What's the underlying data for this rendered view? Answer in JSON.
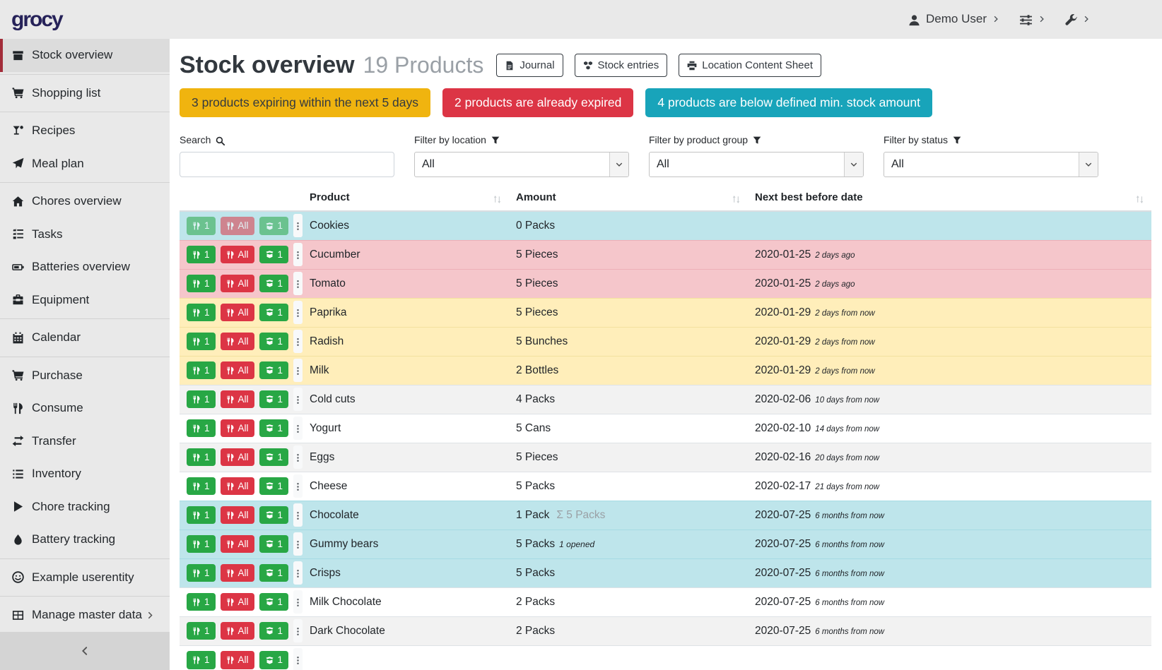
{
  "brand": "grocy",
  "topbar": {
    "user_label": "Demo User",
    "menus": [
      {
        "name": "user-menu",
        "icon": "user",
        "label": "Demo User"
      },
      {
        "name": "settings-menu",
        "icon": "sliders",
        "label": ""
      },
      {
        "name": "admin-menu",
        "icon": "wrench",
        "label": ""
      }
    ]
  },
  "sidebar": {
    "items": [
      {
        "label": "Stock overview",
        "icon": "box",
        "active": true,
        "divider_after": true
      },
      {
        "label": "Shopping list",
        "icon": "cart",
        "divider_after": true
      },
      {
        "label": "Recipes",
        "icon": "cocktail"
      },
      {
        "label": "Meal plan",
        "icon": "plane",
        "divider_after": true
      },
      {
        "label": "Chores overview",
        "icon": "home"
      },
      {
        "label": "Tasks",
        "icon": "tasks"
      },
      {
        "label": "Batteries overview",
        "icon": "battery"
      },
      {
        "label": "Equipment",
        "icon": "toolbox",
        "divider_after": true
      },
      {
        "label": "Calendar",
        "icon": "calendar",
        "divider_after": true
      },
      {
        "label": "Purchase",
        "icon": "cart"
      },
      {
        "label": "Consume",
        "icon": "utensils"
      },
      {
        "label": "Transfer",
        "icon": "exchange"
      },
      {
        "label": "Inventory",
        "icon": "list"
      },
      {
        "label": "Chore tracking",
        "icon": "play"
      },
      {
        "label": "Battery tracking",
        "icon": "tint",
        "divider_after": true
      },
      {
        "label": "Example userentity",
        "icon": "smile",
        "divider_after": true
      },
      {
        "label": "Manage master data",
        "icon": "table",
        "submenu": true
      }
    ]
  },
  "page": {
    "title": "Stock overview",
    "subtitle": "19 Products"
  },
  "toolbar": {
    "buttons": [
      {
        "label": "Journal",
        "icon": "journal"
      },
      {
        "label": "Stock entries",
        "icon": "cubes"
      },
      {
        "label": "Location Content Sheet",
        "icon": "print"
      }
    ]
  },
  "banners": [
    {
      "text": "3 products expiring within the next 5 days",
      "type": "warning"
    },
    {
      "text": "2 products are already expired",
      "type": "danger"
    },
    {
      "text": "4 products are below defined min. stock amount",
      "type": "info"
    }
  ],
  "filters": {
    "search": {
      "label": "Search",
      "icon": "search",
      "value": ""
    },
    "selects": [
      {
        "label": "Filter by location",
        "icon": "filter",
        "value": "All"
      },
      {
        "label": "Filter by product group",
        "icon": "filter",
        "value": "All"
      },
      {
        "label": "Filter by status",
        "icon": "filter",
        "value": "All"
      }
    ]
  },
  "table": {
    "columns": [
      "",
      "Product",
      "Amount",
      "Next best before date"
    ],
    "row_buttons": {
      "consume_one_label": "1",
      "consume_all_label": "All",
      "open_one_label": "1",
      "consume_icon": "utensils",
      "open_icon": "box-open",
      "menu_icon": "ellipsis-v"
    },
    "rows": [
      {
        "product": "Cookies",
        "amount": "0 Packs",
        "status": "info",
        "buttons_disabled": true,
        "date": "",
        "date_note": ""
      },
      {
        "product": "Cucumber",
        "amount": "5 Pieces",
        "status": "danger",
        "date": "2020-01-25",
        "date_note": "2 days ago"
      },
      {
        "product": "Tomato",
        "amount": "5 Pieces",
        "status": "danger",
        "date": "2020-01-25",
        "date_note": "2 days ago"
      },
      {
        "product": "Paprika",
        "amount": "5 Pieces",
        "status": "warning",
        "date": "2020-01-29",
        "date_note": "2 days from now"
      },
      {
        "product": "Radish",
        "amount": "5 Bunches",
        "status": "warning",
        "date": "2020-01-29",
        "date_note": "2 days from now"
      },
      {
        "product": "Milk",
        "amount": "2 Bottles",
        "status": "warning",
        "date": "2020-01-29",
        "date_note": "2 days from now"
      },
      {
        "product": "Cold cuts",
        "amount": "4 Packs",
        "status": "none",
        "date": "2020-02-06",
        "date_note": "10 days from now"
      },
      {
        "product": "Yogurt",
        "amount": "5 Cans",
        "status": "none",
        "date": "2020-02-10",
        "date_note": "14 days from now"
      },
      {
        "product": "Eggs",
        "amount": "5 Pieces",
        "status": "none",
        "date": "2020-02-16",
        "date_note": "20 days from now"
      },
      {
        "product": "Cheese",
        "amount": "5 Packs",
        "status": "none",
        "date": "2020-02-17",
        "date_note": "21 days from now"
      },
      {
        "product": "Chocolate",
        "amount": "1 Pack",
        "amount_sum": "Σ 5 Packs",
        "status": "info",
        "date": "2020-07-25",
        "date_note": "6 months from now"
      },
      {
        "product": "Gummy bears",
        "amount": "5 Packs",
        "amount_note": "1 opened",
        "status": "info",
        "date": "2020-07-25",
        "date_note": "6 months from now"
      },
      {
        "product": "Crisps",
        "amount": "5 Packs",
        "status": "info",
        "date": "2020-07-25",
        "date_note": "6 months from now"
      },
      {
        "product": "Milk Chocolate",
        "amount": "2 Packs",
        "status": "none",
        "date": "2020-07-25",
        "date_note": "6 months from now"
      },
      {
        "product": "Dark Chocolate",
        "amount": "2 Packs",
        "status": "none",
        "date": "2020-07-25",
        "date_note": "6 months from now"
      },
      {
        "product": "",
        "amount": "",
        "status": "none",
        "date": "",
        "date_note": "",
        "partial": true
      }
    ]
  },
  "colors": {
    "accent_red": "#a22c39",
    "brand_navy": "#262259",
    "banner_warning": "#f0b40f",
    "banner_danger": "#dc3545",
    "banner_info": "#18a4ba",
    "row_info": "#bee5eb",
    "row_danger": "#f5c6cb",
    "row_warning": "#ffeeba",
    "button_green": "#28a745",
    "button_red": "#dc3545"
  }
}
